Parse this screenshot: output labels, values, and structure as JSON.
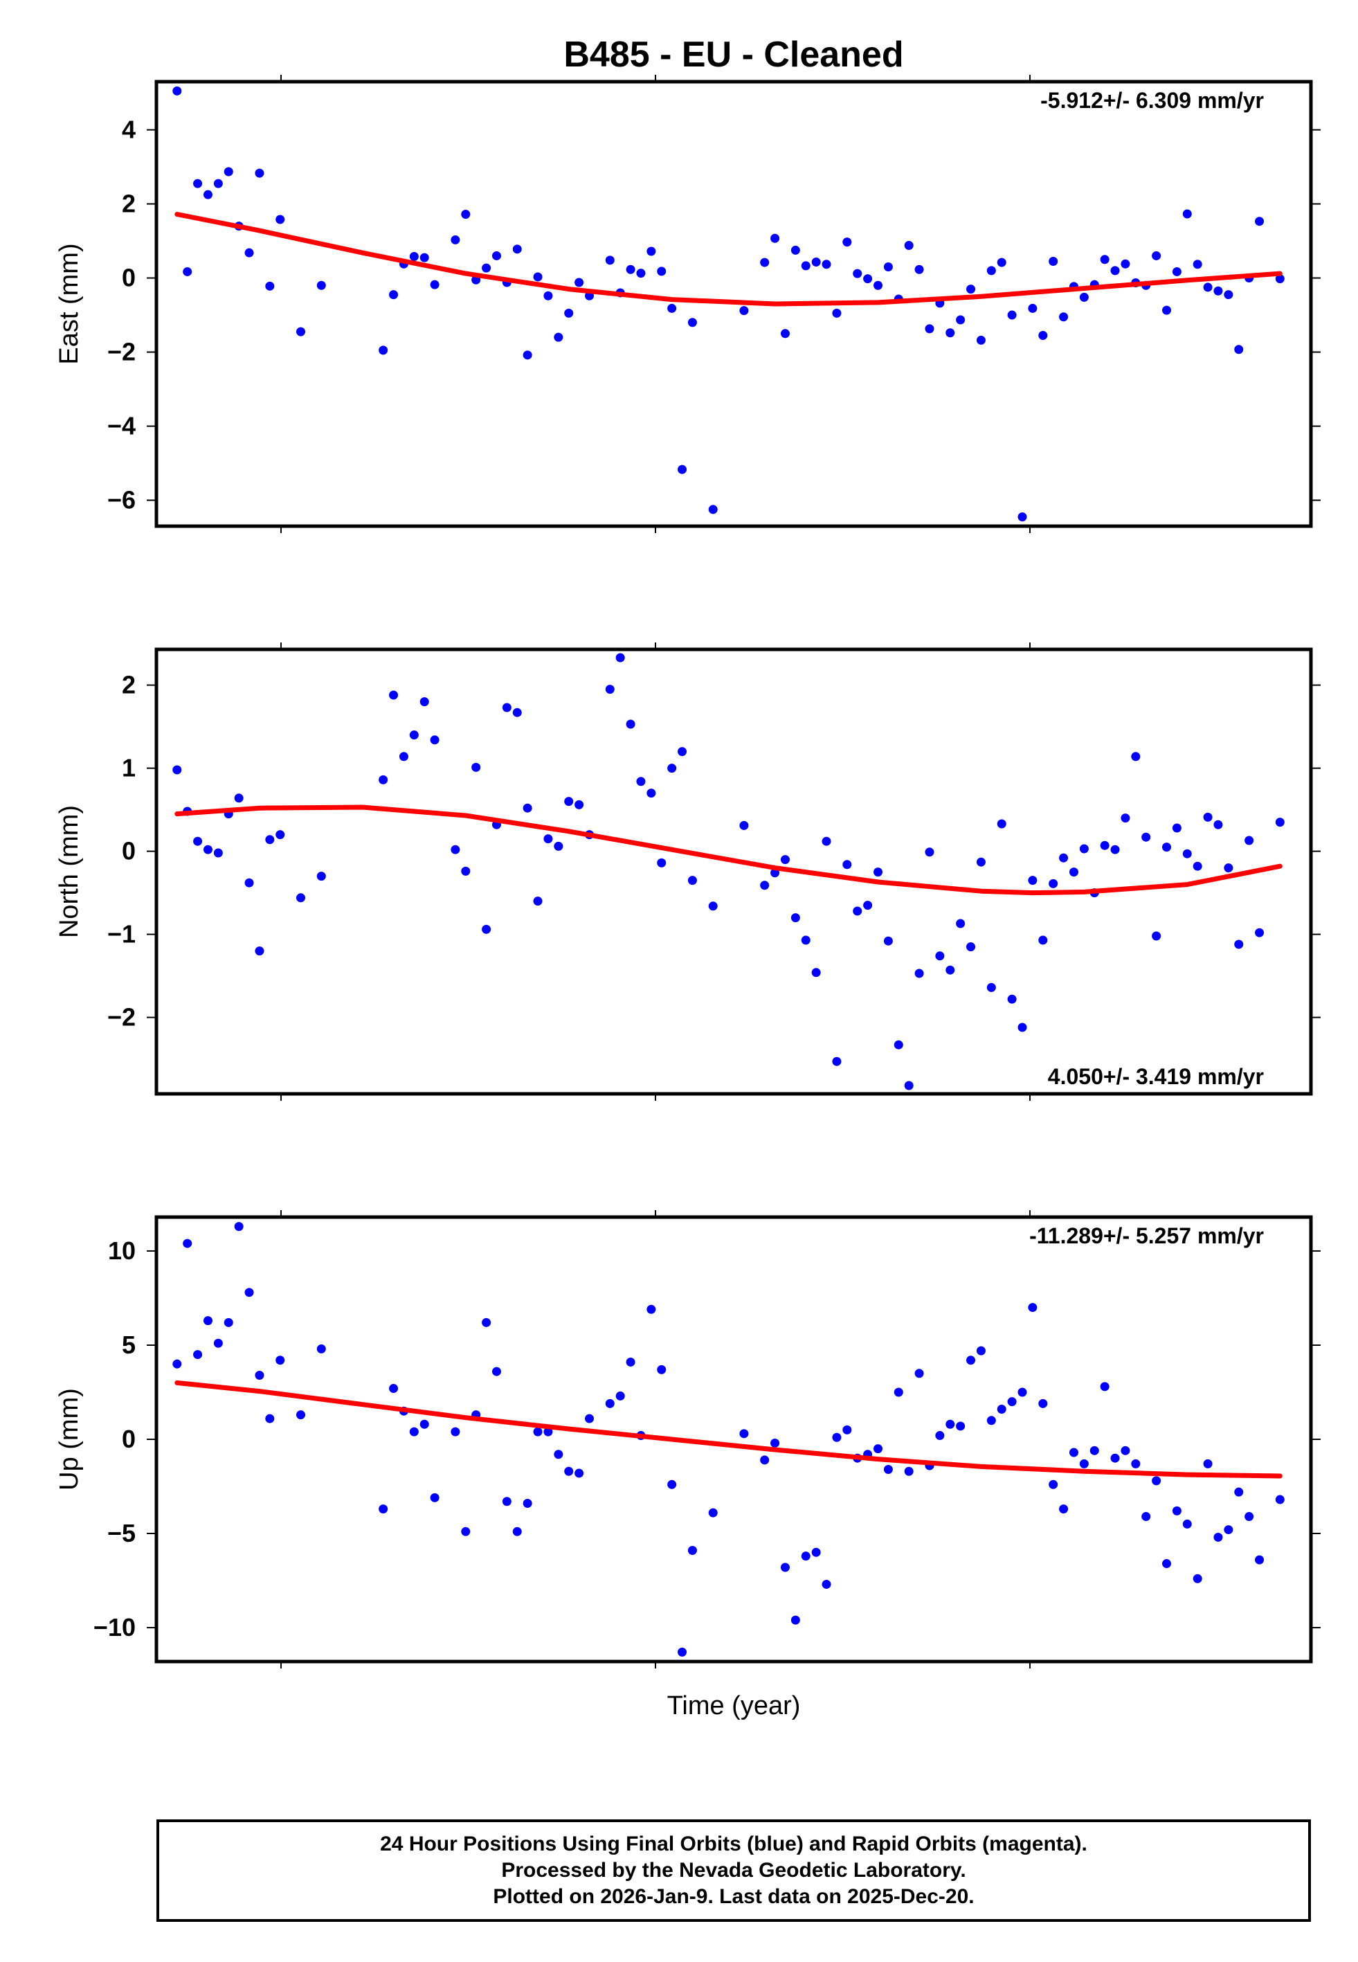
{
  "title": "B485  - EU - Cleaned",
  "xlabel": "Time (year)",
  "footer": {
    "line1": "24 Hour Positions Using Final Orbits (blue) and Rapid Orbits (magenta).",
    "line2": "Processed by the Nevada Geodetic Laboratory.",
    "line3": "Plotted on 2026-Jan-9. Last data on 2025-Dec-20."
  },
  "colors": {
    "points": "#0000ff",
    "fit": "#ff0000"
  },
  "chart_data": [
    {
      "type": "scatter",
      "panel": "east",
      "ylabel": "East (mm)",
      "rate_label": "-5.912+/- 6.309 mm/yr",
      "ylim": [
        -6.7,
        5.3
      ],
      "yticks": [
        4,
        2,
        0,
        -2,
        -4,
        -6
      ],
      "ytick_labels": [
        "4",
        "2",
        "0",
        "−2",
        "−4",
        "−6"
      ],
      "points": [
        [
          0.02,
          5.05
        ],
        [
          0.03,
          0.17
        ],
        [
          0.04,
          2.55
        ],
        [
          0.05,
          2.25
        ],
        [
          0.06,
          2.55
        ],
        [
          0.07,
          2.87
        ],
        [
          0.08,
          1.4
        ],
        [
          0.09,
          0.68
        ],
        [
          0.1,
          2.83
        ],
        [
          0.11,
          -0.22
        ],
        [
          0.12,
          1.58
        ],
        [
          0.14,
          -1.45
        ],
        [
          0.16,
          -0.2
        ],
        [
          0.22,
          -1.95
        ],
        [
          0.23,
          -0.45
        ],
        [
          0.24,
          0.38
        ],
        [
          0.25,
          0.58
        ],
        [
          0.26,
          0.55
        ],
        [
          0.27,
          -0.18
        ],
        [
          0.29,
          1.03
        ],
        [
          0.3,
          1.72
        ],
        [
          0.31,
          -0.05
        ],
        [
          0.32,
          0.27
        ],
        [
          0.33,
          0.6
        ],
        [
          0.34,
          -0.12
        ],
        [
          0.35,
          0.78
        ],
        [
          0.36,
          -2.08
        ],
        [
          0.37,
          0.03
        ],
        [
          0.38,
          -0.48
        ],
        [
          0.39,
          -1.6
        ],
        [
          0.4,
          -0.95
        ],
        [
          0.41,
          -0.12
        ],
        [
          0.42,
          -0.48
        ],
        [
          0.44,
          0.48
        ],
        [
          0.45,
          -0.4
        ],
        [
          0.46,
          0.23
        ],
        [
          0.47,
          0.13
        ],
        [
          0.48,
          0.72
        ],
        [
          0.49,
          0.18
        ],
        [
          0.5,
          -0.82
        ],
        [
          0.52,
          -1.2
        ],
        [
          0.51,
          -5.17
        ],
        [
          0.54,
          -6.25
        ],
        [
          0.57,
          -0.88
        ],
        [
          0.59,
          0.42
        ],
        [
          0.6,
          1.07
        ],
        [
          0.61,
          -1.5
        ],
        [
          0.62,
          0.75
        ],
        [
          0.63,
          0.33
        ],
        [
          0.64,
          0.43
        ],
        [
          0.65,
          0.37
        ],
        [
          0.66,
          -0.95
        ],
        [
          0.67,
          0.97
        ],
        [
          0.68,
          0.12
        ],
        [
          0.69,
          -0.02
        ],
        [
          0.7,
          -0.2
        ],
        [
          0.71,
          0.3
        ],
        [
          0.72,
          -0.57
        ],
        [
          0.73,
          0.88
        ],
        [
          0.74,
          0.23
        ],
        [
          0.75,
          -1.37
        ],
        [
          0.76,
          -0.68
        ],
        [
          0.77,
          -1.48
        ],
        [
          0.78,
          -1.13
        ],
        [
          0.79,
          -0.3
        ],
        [
          0.8,
          -1.68
        ],
        [
          0.81,
          0.2
        ],
        [
          0.82,
          0.42
        ],
        [
          0.83,
          -1.0
        ],
        [
          0.84,
          -6.45
        ],
        [
          0.85,
          -0.82
        ],
        [
          0.86,
          -1.55
        ],
        [
          0.87,
          0.45
        ],
        [
          0.88,
          -1.05
        ],
        [
          0.89,
          -0.23
        ],
        [
          0.9,
          -0.52
        ],
        [
          0.91,
          -0.18
        ],
        [
          0.92,
          0.5
        ],
        [
          0.93,
          0.2
        ],
        [
          0.94,
          0.38
        ],
        [
          0.95,
          -0.13
        ],
        [
          0.96,
          -0.2
        ],
        [
          0.97,
          0.6
        ],
        [
          0.98,
          -0.87
        ],
        [
          0.99,
          0.17
        ],
        [
          1.0,
          1.73
        ],
        [
          1.01,
          0.37
        ],
        [
          1.02,
          -0.25
        ],
        [
          1.03,
          -0.35
        ],
        [
          1.04,
          -0.45
        ],
        [
          1.05,
          -1.93
        ],
        [
          1.06,
          0.0
        ],
        [
          1.07,
          1.53
        ],
        [
          1.09,
          -0.02
        ]
      ],
      "fit": [
        [
          0.02,
          1.72
        ],
        [
          0.1,
          1.28
        ],
        [
          0.2,
          0.68
        ],
        [
          0.3,
          0.12
        ],
        [
          0.4,
          -0.3
        ],
        [
          0.5,
          -0.58
        ],
        [
          0.6,
          -0.7
        ],
        [
          0.7,
          -0.66
        ],
        [
          0.8,
          -0.5
        ],
        [
          0.9,
          -0.28
        ],
        [
          1.0,
          -0.06
        ],
        [
          1.09,
          0.12
        ]
      ]
    },
    {
      "type": "scatter",
      "panel": "north",
      "ylabel": "North (mm)",
      "rate_label": "4.050+/- 3.419 mm/yr",
      "ylim": [
        -2.92,
        2.43
      ],
      "yticks": [
        2,
        1,
        0,
        -1,
        -2
      ],
      "ytick_labels": [
        "2",
        "1",
        "0",
        "−1",
        "−2"
      ],
      "points": [
        [
          0.02,
          0.98
        ],
        [
          0.03,
          0.48
        ],
        [
          0.04,
          0.12
        ],
        [
          0.05,
          0.02
        ],
        [
          0.06,
          -0.02
        ],
        [
          0.07,
          0.45
        ],
        [
          0.08,
          0.64
        ],
        [
          0.09,
          -0.38
        ],
        [
          0.1,
          -1.2
        ],
        [
          0.11,
          0.14
        ],
        [
          0.12,
          0.2
        ],
        [
          0.14,
          -0.56
        ],
        [
          0.16,
          -0.3
        ],
        [
          0.22,
          0.86
        ],
        [
          0.23,
          1.88
        ],
        [
          0.24,
          1.14
        ],
        [
          0.25,
          1.4
        ],
        [
          0.26,
          1.8
        ],
        [
          0.27,
          1.34
        ],
        [
          0.29,
          0.02
        ],
        [
          0.3,
          -0.24
        ],
        [
          0.31,
          1.01
        ],
        [
          0.32,
          -0.94
        ],
        [
          0.33,
          0.32
        ],
        [
          0.34,
          1.73
        ],
        [
          0.35,
          1.67
        ],
        [
          0.36,
          0.52
        ],
        [
          0.37,
          -0.6
        ],
        [
          0.38,
          0.15
        ],
        [
          0.39,
          0.06
        ],
        [
          0.4,
          0.6
        ],
        [
          0.41,
          0.56
        ],
        [
          0.42,
          0.2
        ],
        [
          0.44,
          1.95
        ],
        [
          0.45,
          2.33
        ],
        [
          0.46,
          1.53
        ],
        [
          0.47,
          0.84
        ],
        [
          0.48,
          0.7
        ],
        [
          0.49,
          -0.14
        ],
        [
          0.5,
          1.0
        ],
        [
          0.51,
          1.2
        ],
        [
          0.52,
          -0.35
        ],
        [
          0.54,
          -0.66
        ],
        [
          0.57,
          0.31
        ],
        [
          0.59,
          -0.41
        ],
        [
          0.6,
          -0.26
        ],
        [
          0.61,
          -0.1
        ],
        [
          0.62,
          -0.8
        ],
        [
          0.63,
          -1.07
        ],
        [
          0.64,
          -1.46
        ],
        [
          0.65,
          0.12
        ],
        [
          0.66,
          -2.53
        ],
        [
          0.67,
          -0.16
        ],
        [
          0.68,
          -0.72
        ],
        [
          0.69,
          -0.65
        ],
        [
          0.7,
          -0.25
        ],
        [
          0.71,
          -1.08
        ],
        [
          0.72,
          -2.33
        ],
        [
          0.73,
          -2.82
        ],
        [
          0.74,
          -1.47
        ],
        [
          0.75,
          -0.01
        ],
        [
          0.76,
          -1.26
        ],
        [
          0.77,
          -1.43
        ],
        [
          0.78,
          -0.87
        ],
        [
          0.79,
          -1.15
        ],
        [
          0.8,
          -0.13
        ],
        [
          0.81,
          -1.64
        ],
        [
          0.82,
          0.33
        ],
        [
          0.83,
          -1.78
        ],
        [
          0.84,
          -2.12
        ],
        [
          0.85,
          -0.35
        ],
        [
          0.86,
          -1.07
        ],
        [
          0.87,
          -0.39
        ],
        [
          0.88,
          -0.08
        ],
        [
          0.89,
          -0.25
        ],
        [
          0.9,
          0.03
        ],
        [
          0.91,
          -0.5
        ],
        [
          0.92,
          0.07
        ],
        [
          0.93,
          0.02
        ],
        [
          0.94,
          0.4
        ],
        [
          0.95,
          1.14
        ],
        [
          0.96,
          0.17
        ],
        [
          0.97,
          -1.02
        ],
        [
          0.98,
          0.05
        ],
        [
          0.99,
          0.28
        ],
        [
          1.0,
          -0.03
        ],
        [
          1.01,
          -0.18
        ],
        [
          1.02,
          0.41
        ],
        [
          1.03,
          0.32
        ],
        [
          1.04,
          -0.2
        ],
        [
          1.05,
          -1.12
        ],
        [
          1.06,
          0.13
        ],
        [
          1.07,
          -0.98
        ],
        [
          1.09,
          0.35
        ]
      ],
      "fit": [
        [
          0.02,
          0.45
        ],
        [
          0.1,
          0.52
        ],
        [
          0.2,
          0.53
        ],
        [
          0.3,
          0.43
        ],
        [
          0.4,
          0.24
        ],
        [
          0.5,
          0.02
        ],
        [
          0.6,
          -0.2
        ],
        [
          0.7,
          -0.37
        ],
        [
          0.8,
          -0.48
        ],
        [
          0.85,
          -0.5
        ],
        [
          0.9,
          -0.49
        ],
        [
          1.0,
          -0.4
        ],
        [
          1.09,
          -0.18
        ]
      ]
    },
    {
      "type": "scatter",
      "panel": "up",
      "ylabel": "Up (mm)",
      "rate_label": "-11.289+/- 5.257 mm/yr",
      "ylim": [
        -11.8,
        11.8
      ],
      "yticks": [
        10,
        5,
        0,
        -5,
        -10
      ],
      "ytick_labels": [
        "10",
        "5",
        "0",
        "−5",
        "−10"
      ],
      "points": [
        [
          0.02,
          4.0
        ],
        [
          0.03,
          10.4
        ],
        [
          0.04,
          4.5
        ],
        [
          0.05,
          6.3
        ],
        [
          0.06,
          5.1
        ],
        [
          0.07,
          6.2
        ],
        [
          0.08,
          11.3
        ],
        [
          0.09,
          7.8
        ],
        [
          0.1,
          3.4
        ],
        [
          0.11,
          1.1
        ],
        [
          0.12,
          4.2
        ],
        [
          0.14,
          1.3
        ],
        [
          0.16,
          4.8
        ],
        [
          0.22,
          -3.7
        ],
        [
          0.23,
          2.7
        ],
        [
          0.24,
          1.5
        ],
        [
          0.25,
          0.4
        ],
        [
          0.26,
          0.8
        ],
        [
          0.27,
          -3.1
        ],
        [
          0.29,
          0.4
        ],
        [
          0.3,
          -4.9
        ],
        [
          0.31,
          1.3
        ],
        [
          0.32,
          6.2
        ],
        [
          0.33,
          3.6
        ],
        [
          0.34,
          -3.3
        ],
        [
          0.35,
          -4.9
        ],
        [
          0.36,
          -3.4
        ],
        [
          0.37,
          0.4
        ],
        [
          0.38,
          0.4
        ],
        [
          0.39,
          -0.8
        ],
        [
          0.4,
          -1.7
        ],
        [
          0.41,
          -1.8
        ],
        [
          0.42,
          1.1
        ],
        [
          0.44,
          1.9
        ],
        [
          0.45,
          2.3
        ],
        [
          0.46,
          4.1
        ],
        [
          0.47,
          0.2
        ],
        [
          0.48,
          6.9
        ],
        [
          0.49,
          3.7
        ],
        [
          0.5,
          -2.4
        ],
        [
          0.52,
          -5.9
        ],
        [
          0.51,
          -11.3
        ],
        [
          0.54,
          -3.9
        ],
        [
          0.57,
          0.3
        ],
        [
          0.59,
          -1.1
        ],
        [
          0.6,
          -0.2
        ],
        [
          0.61,
          -6.8
        ],
        [
          0.62,
          -9.6
        ],
        [
          0.63,
          -6.2
        ],
        [
          0.64,
          -6.0
        ],
        [
          0.65,
          -7.7
        ],
        [
          0.66,
          0.1
        ],
        [
          0.67,
          0.5
        ],
        [
          0.68,
          -1.0
        ],
        [
          0.69,
          -0.8
        ],
        [
          0.7,
          -0.5
        ],
        [
          0.71,
          -1.6
        ],
        [
          0.72,
          2.5
        ],
        [
          0.73,
          -1.7
        ],
        [
          0.74,
          3.5
        ],
        [
          0.75,
          -1.4
        ],
        [
          0.76,
          0.2
        ],
        [
          0.77,
          0.8
        ],
        [
          0.78,
          0.7
        ],
        [
          0.79,
          4.2
        ],
        [
          0.8,
          4.7
        ],
        [
          0.81,
          1.0
        ],
        [
          0.82,
          1.6
        ],
        [
          0.83,
          2.0
        ],
        [
          0.84,
          2.5
        ],
        [
          0.85,
          7.0
        ],
        [
          0.86,
          1.9
        ],
        [
          0.87,
          -2.4
        ],
        [
          0.88,
          -3.7
        ],
        [
          0.89,
          -0.7
        ],
        [
          0.9,
          -1.3
        ],
        [
          0.91,
          -0.6
        ],
        [
          0.92,
          2.8
        ],
        [
          0.93,
          -1.0
        ],
        [
          0.94,
          -0.6
        ],
        [
          0.95,
          -1.3
        ],
        [
          0.96,
          -4.1
        ],
        [
          0.97,
          -2.2
        ],
        [
          0.98,
          -6.6
        ],
        [
          0.99,
          -3.8
        ],
        [
          1.0,
          -4.5
        ],
        [
          1.01,
          -7.4
        ],
        [
          1.02,
          -1.3
        ],
        [
          1.03,
          -5.2
        ],
        [
          1.04,
          -4.8
        ],
        [
          1.05,
          -2.8
        ],
        [
          1.06,
          -4.1
        ],
        [
          1.07,
          -6.4
        ],
        [
          1.09,
          -3.2
        ]
      ],
      "fit": [
        [
          0.02,
          3.0
        ],
        [
          0.1,
          2.55
        ],
        [
          0.2,
          1.85
        ],
        [
          0.3,
          1.15
        ],
        [
          0.4,
          0.55
        ],
        [
          0.5,
          0.0
        ],
        [
          0.6,
          -0.55
        ],
        [
          0.7,
          -1.05
        ],
        [
          0.8,
          -1.45
        ],
        [
          0.9,
          -1.7
        ],
        [
          1.0,
          -1.88
        ],
        [
          1.09,
          -1.95
        ]
      ]
    }
  ]
}
